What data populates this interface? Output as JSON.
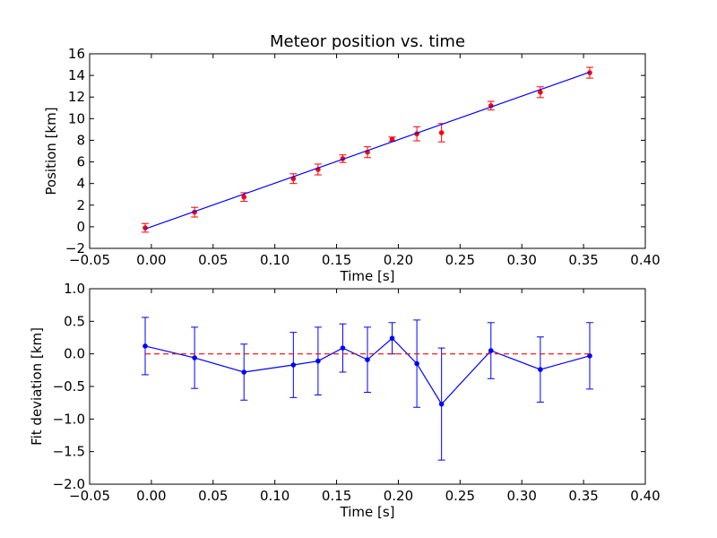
{
  "chart_data": [
    {
      "type": "scatter",
      "title": "Meteor position vs. time",
      "xlabel": "Time [s]",
      "ylabel": "Position [km]",
      "xlim": [
        -0.05,
        0.4
      ],
      "ylim": [
        -2,
        16
      ],
      "xticks": [
        "−0.05",
        "0.00",
        "0.05",
        "0.10",
        "0.15",
        "0.20",
        "0.25",
        "0.30",
        "0.35",
        "0.40"
      ],
      "yticks": [
        "−2",
        "0",
        "2",
        "4",
        "6",
        "8",
        "10",
        "12",
        "14",
        "16"
      ],
      "x": [
        -0.005,
        0.035,
        0.075,
        0.115,
        0.135,
        0.155,
        0.175,
        0.195,
        0.215,
        0.235,
        0.275,
        0.315,
        0.355
      ],
      "series": [
        {
          "style": "points-with-errorbars",
          "color": "#ff0000",
          "y": [
            -0.1,
            1.35,
            2.75,
            4.45,
            5.3,
            6.3,
            6.9,
            8.1,
            8.6,
            8.7,
            11.2,
            12.45,
            14.25
          ],
          "err": [
            0.4,
            0.45,
            0.4,
            0.45,
            0.5,
            0.35,
            0.5,
            0.2,
            0.65,
            0.85,
            0.4,
            0.5,
            0.5
          ]
        },
        {
          "style": "fit-line",
          "color": "#0000ff",
          "x": [
            -0.005,
            0.355
          ],
          "y": [
            -0.2,
            14.3
          ]
        }
      ]
    },
    {
      "type": "line",
      "title": "",
      "xlabel": "Time [s]",
      "ylabel": "Fit deviation [km]",
      "xlim": [
        -0.05,
        0.4
      ],
      "ylim": [
        -2.0,
        1.0
      ],
      "xticks": [
        "−0.05",
        "0.00",
        "0.05",
        "0.10",
        "0.15",
        "0.20",
        "0.25",
        "0.30",
        "0.35",
        "0.40"
      ],
      "yticks": [
        "−2.0",
        "−1.5",
        "−1.0",
        "−0.5",
        "0.0",
        "0.5",
        "1.0"
      ],
      "x": [
        -0.005,
        0.035,
        0.075,
        0.115,
        0.135,
        0.155,
        0.175,
        0.195,
        0.215,
        0.235,
        0.275,
        0.315,
        0.355
      ],
      "series": [
        {
          "style": "line-with-errorbars",
          "color": "#0000ff",
          "y": [
            0.12,
            -0.06,
            -0.28,
            -0.17,
            -0.11,
            0.09,
            -0.09,
            0.24,
            -0.15,
            -0.77,
            0.05,
            -0.24,
            -0.03
          ],
          "err": [
            0.44,
            0.47,
            0.43,
            0.5,
            0.52,
            0.37,
            0.5,
            0.24,
            0.67,
            0.86,
            0.43,
            0.5,
            0.51
          ]
        },
        {
          "style": "dashed-zero-line",
          "color": "#ff0000",
          "x": [
            -0.005,
            0.355
          ],
          "y": [
            0,
            0
          ]
        }
      ]
    }
  ]
}
